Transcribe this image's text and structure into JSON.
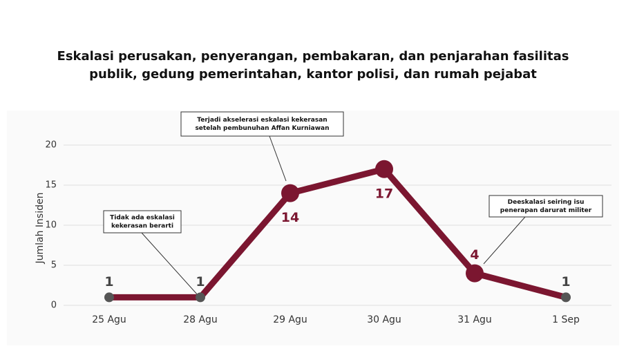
{
  "chart_data": {
    "type": "line",
    "title": [
      "Eskalasi perusakan, penyerangan, pembakaran, dan penjarahan fasilitas",
      "publik, gedung pemerintahan, kantor polisi, dan rumah pejabat"
    ],
    "y_label": "Jumlah Insiden",
    "categories": [
      "25 Agu",
      "28 Agu",
      "29 Agu",
      "30 Agu",
      "31 Agu",
      "1 Sep"
    ],
    "series": [
      {
        "color": "#7b1630",
        "values": [
          1,
          1,
          14,
          17,
          4,
          1
        ],
        "marker_colors": [
          "#555555",
          "#555555",
          "#7b1630",
          "#7b1630",
          "#7b1630",
          "#555555"
        ]
      }
    ],
    "ylim": [
      0,
      20
    ],
    "yticks": [
      0,
      5,
      10,
      15,
      20
    ],
    "grid": true,
    "annotations": [
      {
        "lines": [
          "Tidak ada eskalasi",
          "kekerasan berarti"
        ]
      },
      {
        "lines": [
          "Terjadi akselerasi eskalasi kekerasan",
          "setelah pembunuhan Affan Kurniawan"
        ]
      },
      {
        "lines": [
          "Deeskalasi seiring isu",
          "penerapan darurat militer"
        ]
      }
    ]
  }
}
